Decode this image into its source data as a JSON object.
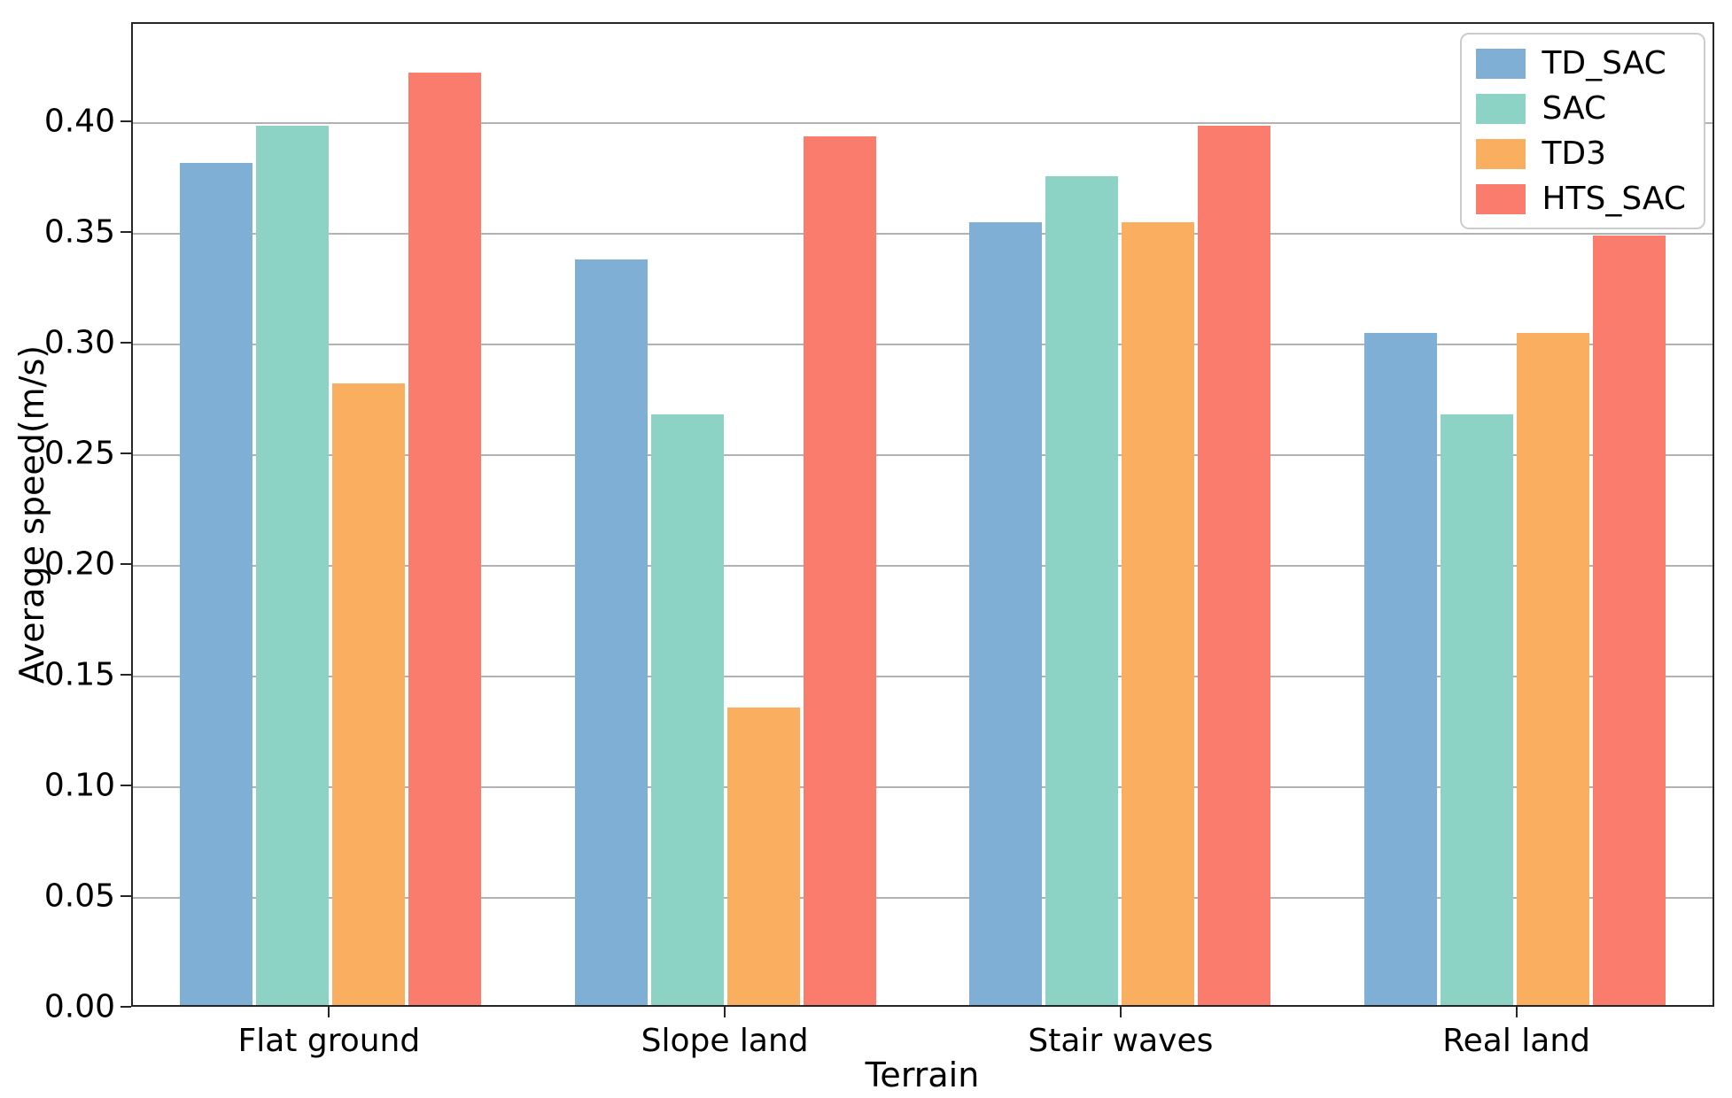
{
  "chart_data": {
    "type": "bar",
    "title": "",
    "xlabel": "Terrain",
    "ylabel": "Average speed(m/s)",
    "categories": [
      "Flat ground",
      "Slope land",
      "Stair waves",
      "Real land"
    ],
    "series": [
      {
        "name": "TD_SAC",
        "color": "#7FAFD4",
        "values": [
          0.382,
          0.338,
          0.355,
          0.305
        ]
      },
      {
        "name": "SAC",
        "color": "#8CD2C5",
        "values": [
          0.399,
          0.268,
          0.376,
          0.268
        ]
      },
      {
        "name": "TD3",
        "color": "#FAAF60",
        "values": [
          0.282,
          0.135,
          0.355,
          0.305
        ]
      },
      {
        "name": "HTS_SAC",
        "color": "#FA7C6C",
        "values": [
          0.423,
          0.394,
          0.399,
          0.349
        ]
      }
    ],
    "yticks": [
      0.0,
      0.05,
      0.1,
      0.15,
      0.2,
      0.25,
      0.3,
      0.35,
      0.4
    ],
    "ytick_labels": [
      "0.00",
      "0.05",
      "0.10",
      "0.15",
      "0.20",
      "0.25",
      "0.30",
      "0.35",
      "0.40"
    ],
    "ylim": [
      0,
      0.445
    ],
    "grid": true,
    "legend_position": "upper right",
    "colors": {
      "spine": "#262626",
      "gridline": "#b2b2b2",
      "background": "#ffffff"
    }
  }
}
